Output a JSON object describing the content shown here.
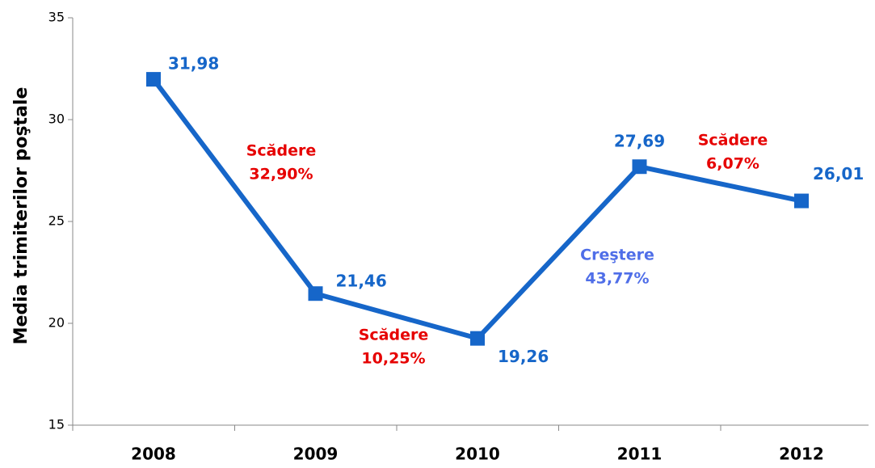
{
  "chart_data": {
    "type": "line",
    "ylabel": "Media trimiterilor poştale",
    "categories": [
      "2008",
      "2009",
      "2010",
      "2011",
      "2012"
    ],
    "series": [
      {
        "name": null,
        "color": "#1666c9",
        "values": [
          31.98,
          21.46,
          19.26,
          27.69,
          26.01
        ],
        "value_labels": [
          "31,98",
          "21,46",
          "19,26",
          "27,69",
          "26,01"
        ]
      }
    ],
    "ylim": [
      15,
      35
    ],
    "yticks": [
      15,
      20,
      25,
      30,
      35
    ],
    "grid": false,
    "annotations": [
      {
        "lines": [
          "Scădere",
          "32,90%"
        ],
        "color": "#e60000"
      },
      {
        "lines": [
          "Scădere",
          "10,25%"
        ],
        "color": "#e60000"
      },
      {
        "lines": [
          "Creştere",
          "43,77%"
        ],
        "color": "#4f6ee8"
      },
      {
        "lines": [
          "Scădere",
          "6,07%"
        ],
        "color": "#e60000"
      }
    ]
  }
}
